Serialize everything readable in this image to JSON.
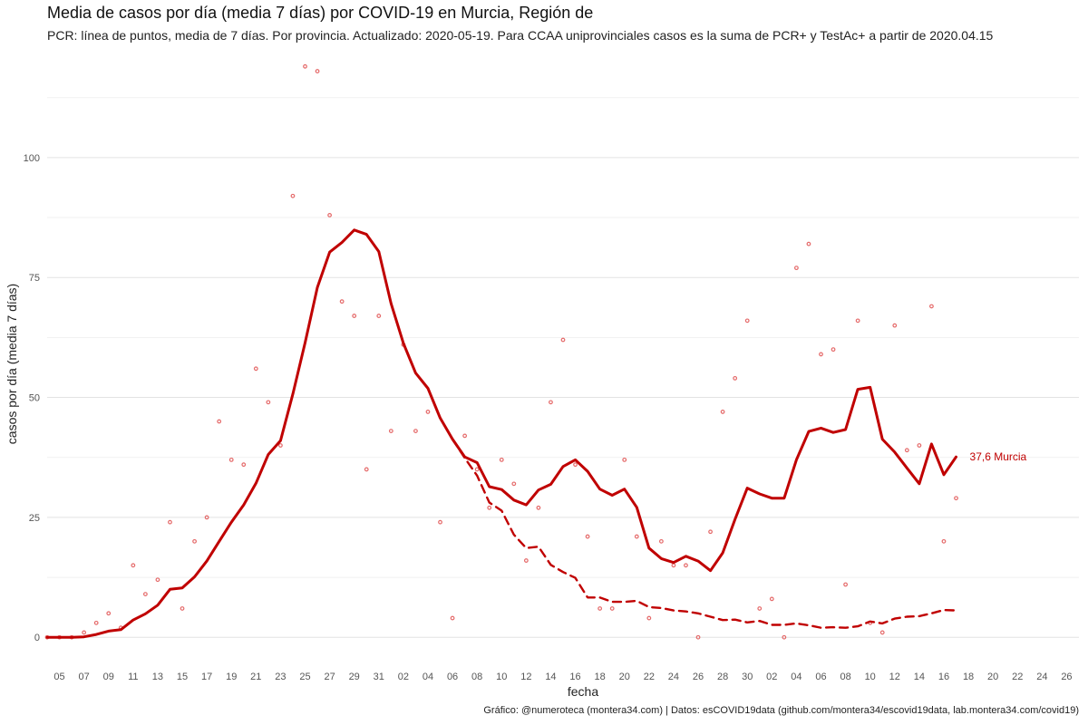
{
  "header": {
    "title": "Media de casos por día (media 7 días) por COVID-19 en Murcia, Región de",
    "subtitle": "PCR: línea de puntos, media de 7 días. Por provincia. Actualizado: 2020-05-19. Para CCAA uniprovinciales casos es la suma de PCR+ y TestAc+ a partir de 2020.04.15"
  },
  "caption": "Gráfico: @numeroteca (montera34.com) | Datos: esCOVID19data (github.com/montera34/escovid19data, lab.montera34.com/covid19)",
  "chart_data": {
    "type": "line",
    "xlabel": "fecha",
    "ylabel": "casos por día (media 7 días)",
    "ylim": [
      -6,
      120
    ],
    "y_ticks": [
      0,
      25,
      50,
      75,
      100
    ],
    "grid": true,
    "x_range": [
      "2020-03-04",
      "2020-05-27"
    ],
    "x_tick_labels": [
      "05",
      "07",
      "09",
      "11",
      "13",
      "15",
      "17",
      "19",
      "21",
      "23",
      "25",
      "27",
      "29",
      "31",
      "02",
      "04",
      "06",
      "08",
      "10",
      "12",
      "14",
      "16",
      "18",
      "20",
      "22",
      "24",
      "26",
      "28",
      "30",
      "02",
      "04",
      "06",
      "08",
      "10",
      "12",
      "14",
      "16",
      "18",
      "20",
      "22",
      "24",
      "26"
    ],
    "x_tick_dates": [
      "2020-03-05",
      "2020-03-07",
      "2020-03-09",
      "2020-03-11",
      "2020-03-13",
      "2020-03-15",
      "2020-03-17",
      "2020-03-19",
      "2020-03-21",
      "2020-03-23",
      "2020-03-25",
      "2020-03-27",
      "2020-03-29",
      "2020-03-31",
      "2020-04-02",
      "2020-04-04",
      "2020-04-06",
      "2020-04-08",
      "2020-04-10",
      "2020-04-12",
      "2020-04-14",
      "2020-04-16",
      "2020-04-18",
      "2020-04-20",
      "2020-04-22",
      "2020-04-24",
      "2020-04-26",
      "2020-04-28",
      "2020-04-30",
      "2020-05-02",
      "2020-05-04",
      "2020-05-06",
      "2020-05-08",
      "2020-05-10",
      "2020-05-12",
      "2020-05-14",
      "2020-05-16",
      "2020-05-18",
      "2020-05-20",
      "2020-05-22",
      "2020-05-24",
      "2020-05-26"
    ],
    "end_label": "37,6 Murcia",
    "colors": {
      "series": "#c00000",
      "points": "#e05050"
    },
    "series": [
      {
        "style": "solid",
        "x": [
          "2020-03-04",
          "2020-03-05",
          "2020-03-06",
          "2020-03-07",
          "2020-03-08",
          "2020-03-09",
          "2020-03-10",
          "2020-03-11",
          "2020-03-12",
          "2020-03-13",
          "2020-03-14",
          "2020-03-15",
          "2020-03-16",
          "2020-03-17",
          "2020-03-18",
          "2020-03-19",
          "2020-03-20",
          "2020-03-21",
          "2020-03-22",
          "2020-03-23",
          "2020-03-24",
          "2020-03-25",
          "2020-03-26",
          "2020-03-27",
          "2020-03-28",
          "2020-03-29",
          "2020-03-30",
          "2020-03-31",
          "2020-04-01",
          "2020-04-02",
          "2020-04-03",
          "2020-04-04",
          "2020-04-05",
          "2020-04-06",
          "2020-04-07",
          "2020-04-08",
          "2020-04-09",
          "2020-04-10",
          "2020-04-11",
          "2020-04-12",
          "2020-04-13",
          "2020-04-14",
          "2020-04-15",
          "2020-04-16",
          "2020-04-17",
          "2020-04-18",
          "2020-04-19",
          "2020-04-20",
          "2020-04-21",
          "2020-04-22",
          "2020-04-23",
          "2020-04-24",
          "2020-04-25",
          "2020-04-26",
          "2020-04-27",
          "2020-04-28",
          "2020-04-29",
          "2020-04-30",
          "2020-05-01",
          "2020-05-02",
          "2020-05-03",
          "2020-05-04",
          "2020-05-05",
          "2020-05-06",
          "2020-05-07",
          "2020-05-08",
          "2020-05-09",
          "2020-05-10",
          "2020-05-11",
          "2020-05-12",
          "2020-05-13",
          "2020-05-14",
          "2020-05-15",
          "2020-05-16",
          "2020-05-17"
        ],
        "values": [
          0,
          0,
          0,
          0.1,
          0.6,
          1.3,
          1.6,
          3.6,
          4.9,
          6.7,
          10,
          10.3,
          12.6,
          15.9,
          20,
          24,
          27.6,
          32.1,
          38.1,
          41,
          50.7,
          61.4,
          72.9,
          80.3,
          82.3,
          84.9,
          84,
          80.4,
          69.6,
          61.3,
          55.1,
          51.9,
          45.7,
          41.3,
          37.6,
          36.4,
          31.4,
          30.8,
          28.6,
          27.6,
          30.7,
          31.9,
          35.6,
          37,
          34.6,
          30.9,
          29.6,
          30.9,
          27.1,
          18.6,
          16.4,
          15.6,
          16.9,
          15.9,
          13.9,
          17.6,
          24.6,
          31.1,
          29.9,
          29,
          29,
          37,
          42.9,
          43.6,
          42.7,
          43.3,
          51.7,
          52.1,
          41.3,
          38.6,
          35.3,
          32,
          40.3,
          33.9,
          37.6
        ]
      },
      {
        "style": "dashed",
        "x": [
          "2020-04-06",
          "2020-04-07",
          "2020-04-08",
          "2020-04-09",
          "2020-04-10",
          "2020-04-11",
          "2020-04-12",
          "2020-04-13",
          "2020-04-14",
          "2020-04-15",
          "2020-04-16",
          "2020-04-17",
          "2020-04-18",
          "2020-04-19",
          "2020-04-20",
          "2020-04-21",
          "2020-04-22",
          "2020-04-23",
          "2020-04-24",
          "2020-04-25",
          "2020-04-26",
          "2020-04-27",
          "2020-04-28",
          "2020-04-29",
          "2020-04-30",
          "2020-05-01",
          "2020-05-02",
          "2020-05-03",
          "2020-05-04",
          "2020-05-05",
          "2020-05-06",
          "2020-05-07",
          "2020-05-08",
          "2020-05-09",
          "2020-05-10",
          "2020-05-11",
          "2020-05-12",
          "2020-05-13",
          "2020-05-14",
          "2020-05-15",
          "2020-05-16",
          "2020-05-17"
        ],
        "values": [
          41.3,
          37.4,
          33.7,
          28.1,
          26.4,
          21.4,
          18.6,
          18.9,
          15.1,
          13.6,
          12.4,
          8.3,
          8.3,
          7.4,
          7.4,
          7.6,
          6.3,
          6.1,
          5.6,
          5.4,
          5,
          4.3,
          3.6,
          3.7,
          3.1,
          3.4,
          2.6,
          2.6,
          2.9,
          2.5,
          2,
          2.1,
          2,
          2.3,
          3.3,
          2.9,
          3.9,
          4.3,
          4.4,
          5,
          5.7,
          5.6
        ]
      }
    ],
    "points": {
      "x": [
        "2020-03-04",
        "2020-03-05",
        "2020-03-06",
        "2020-03-07",
        "2020-03-08",
        "2020-03-09",
        "2020-03-10",
        "2020-03-11",
        "2020-03-12",
        "2020-03-13",
        "2020-03-14",
        "2020-03-15",
        "2020-03-16",
        "2020-03-17",
        "2020-03-18",
        "2020-03-19",
        "2020-03-20",
        "2020-03-21",
        "2020-03-22",
        "2020-03-23",
        "2020-03-24",
        "2020-03-25",
        "2020-03-26",
        "2020-03-27",
        "2020-03-28",
        "2020-03-29",
        "2020-03-30",
        "2020-03-31",
        "2020-04-01",
        "2020-04-02",
        "2020-04-03",
        "2020-04-04",
        "2020-04-05",
        "2020-04-06",
        "2020-04-07",
        "2020-04-08",
        "2020-04-09",
        "2020-04-10",
        "2020-04-11",
        "2020-04-12",
        "2020-04-13",
        "2020-04-14",
        "2020-04-15",
        "2020-04-16",
        "2020-04-17",
        "2020-04-18",
        "2020-04-19",
        "2020-04-20",
        "2020-04-21",
        "2020-04-22",
        "2020-04-23",
        "2020-04-24",
        "2020-04-25",
        "2020-04-26",
        "2020-04-27",
        "2020-04-28",
        "2020-04-29",
        "2020-04-30",
        "2020-05-01",
        "2020-05-02",
        "2020-05-03",
        "2020-05-04",
        "2020-05-05",
        "2020-05-06",
        "2020-05-07",
        "2020-05-08",
        "2020-05-09",
        "2020-05-10",
        "2020-05-11",
        "2020-05-12",
        "2020-05-13",
        "2020-05-14",
        "2020-05-15",
        "2020-05-16",
        "2020-05-17"
      ],
      "values": [
        0,
        0,
        0,
        1,
        3,
        5,
        2,
        15,
        9,
        12,
        24,
        6,
        20,
        25,
        45,
        37,
        36,
        56,
        49,
        40,
        92,
        119,
        118,
        88,
        70,
        67,
        35,
        67,
        43,
        61,
        43,
        47,
        24,
        4,
        42,
        35,
        27,
        37,
        32,
        16,
        27,
        49,
        62,
        36,
        21,
        6,
        6,
        37,
        21,
        4,
        20,
        15,
        15,
        0,
        22,
        47,
        54,
        66,
        6,
        8,
        0,
        77,
        82,
        59,
        60,
        11,
        66,
        3,
        1,
        65,
        39,
        40,
        69,
        20,
        29
      ]
    }
  }
}
